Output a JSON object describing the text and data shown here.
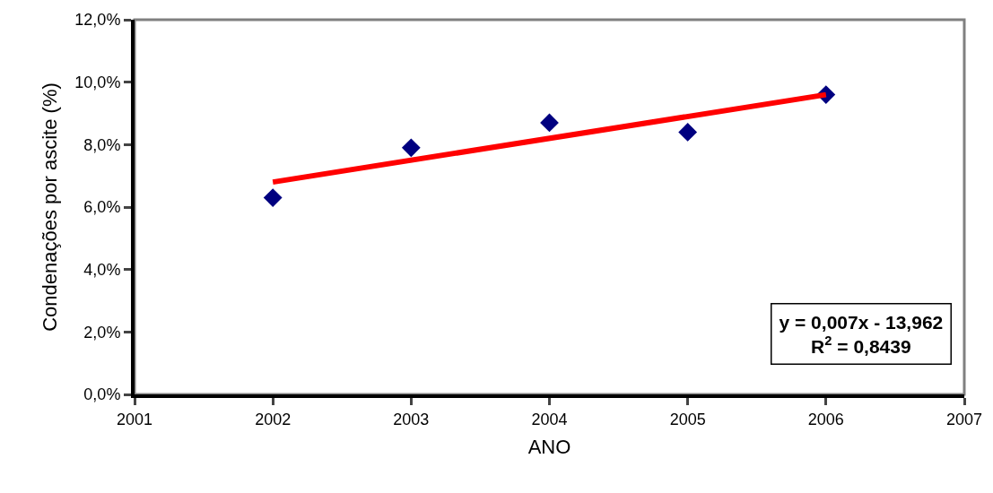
{
  "chart_data": {
    "type": "scatter",
    "xlabel": "ANO",
    "ylabel": "Condenações por ascite (%)",
    "x": [
      2002,
      2003,
      2004,
      2005,
      2006
    ],
    "series": [
      {
        "color": "#000080",
        "values": [
          6.3,
          7.9,
          8.7,
          8.4,
          9.6
        ],
        "marker": "diamond"
      },
      {
        "type": "line",
        "color": "#ff0000",
        "x": [
          2002,
          2006
        ],
        "values": [
          6.8,
          9.6
        ],
        "marker": "none"
      }
    ],
    "xlim": [
      2001,
      2007
    ],
    "xticks": [
      2001,
      2002,
      2003,
      2004,
      2005,
      2006,
      2007
    ],
    "ylim": [
      0,
      12
    ],
    "yticks": [
      {
        "value": 0,
        "label": "0,0%"
      },
      {
        "value": 2,
        "label": "2,0%"
      },
      {
        "value": 4,
        "label": "4,0%"
      },
      {
        "value": 6,
        "label": "6,0%"
      },
      {
        "value": 8,
        "label": "8,0%"
      },
      {
        "value": 10,
        "label": "10,0%"
      },
      {
        "value": 12,
        "label": "12,0%"
      }
    ],
    "annotations": [
      "y = 0,007x - 13,962\nR$^{2}$ = 0,8439"
    ],
    "grid": false,
    "legend": false
  }
}
